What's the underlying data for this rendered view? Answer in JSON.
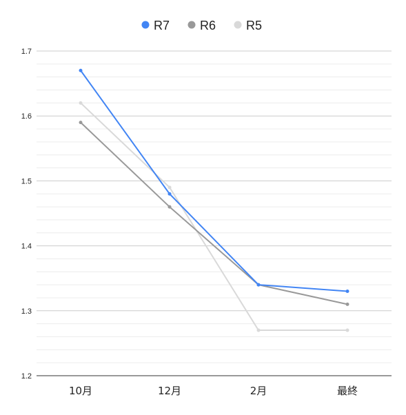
{
  "chart_data": {
    "type": "line",
    "title": "",
    "xlabel": "",
    "ylabel": "",
    "categories": [
      "10月",
      "12月",
      "2月",
      "最終"
    ],
    "ylim": [
      1.2,
      1.7
    ],
    "yticks": [
      "1.2",
      "1.3",
      "1.4",
      "1.5",
      "1.6",
      "1.7"
    ],
    "minor_gridlines_per_major": 5,
    "grid": true,
    "legend_position": "top-center",
    "series": [
      {
        "name": "R7",
        "color": "#4285f4",
        "values": [
          1.67,
          1.48,
          1.34,
          1.33
        ]
      },
      {
        "name": "R6",
        "color": "#999999",
        "values": [
          1.59,
          1.46,
          1.34,
          1.31
        ]
      },
      {
        "name": "R5",
        "color": "#d9d9d9",
        "values": [
          1.62,
          1.49,
          1.27,
          1.27
        ]
      }
    ]
  }
}
